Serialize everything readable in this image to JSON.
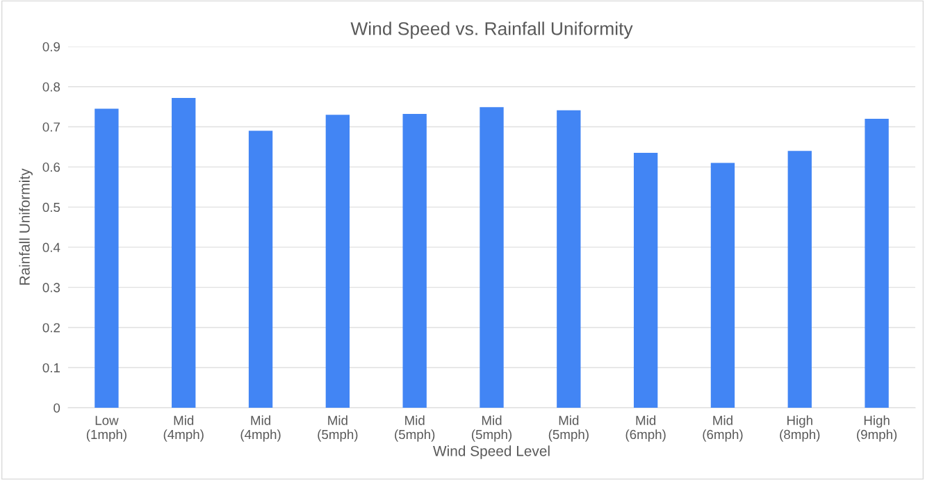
{
  "chart_data": {
    "type": "bar",
    "title": "Wind Speed vs. Rainfall Uniformity",
    "xlabel": "Wind Speed Level",
    "ylabel": "Rainfall Uniformity",
    "categories": [
      "Low\n(1mph)",
      "Mid\n(4mph)",
      "Mid\n(4mph)",
      "Mid\n(5mph)",
      "Mid\n(5mph)",
      "Mid\n(5mph)",
      "Mid\n(5mph)",
      "Mid\n(6mph)",
      "Mid\n(6mph)",
      "High\n(8mph)",
      "High\n(9mph)"
    ],
    "values": [
      0.745,
      0.772,
      0.69,
      0.73,
      0.732,
      0.749,
      0.741,
      0.635,
      0.61,
      0.64,
      0.72
    ],
    "color": "#4285f4",
    "ylim": [
      0,
      0.9
    ],
    "yticks": [
      0,
      0.1,
      0.2,
      0.3,
      0.4,
      0.5,
      0.6,
      0.7,
      0.8,
      0.9
    ],
    "grid": "y"
  }
}
